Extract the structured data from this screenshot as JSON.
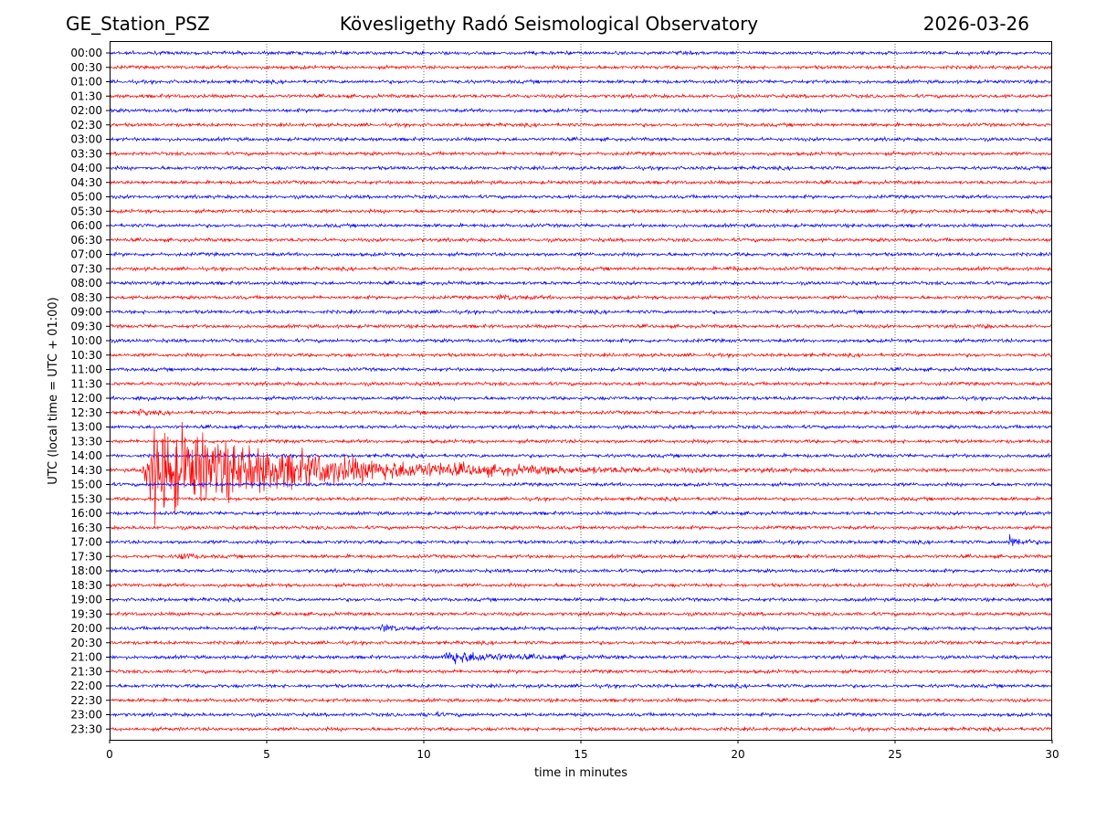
{
  "header": {
    "station": "GE_Station_PSZ",
    "title": "Kövesligethy Radó Seismological Observatory",
    "date": "2026-03-26"
  },
  "chart_data": {
    "type": "line",
    "title": "Kövesligethy Radó Seismological Observatory",
    "xlabel": "time in minutes",
    "ylabel": "UTC (local time = UTC + 01:00)",
    "xlim": [
      0,
      30
    ],
    "x_ticks": [
      0,
      5,
      10,
      15,
      20,
      25,
      30
    ],
    "grid": "vertical dotted at x ticks",
    "trace_colors": [
      "#0000ff",
      "#ff0000"
    ],
    "rows": [
      "00:00",
      "00:30",
      "01:00",
      "01:30",
      "02:00",
      "02:30",
      "03:00",
      "03:30",
      "04:00",
      "04:30",
      "05:00",
      "05:30",
      "06:00",
      "06:30",
      "07:00",
      "07:30",
      "08:00",
      "08:30",
      "09:00",
      "09:30",
      "10:00",
      "10:30",
      "11:00",
      "11:30",
      "12:00",
      "12:30",
      "13:00",
      "13:30",
      "14:00",
      "14:30",
      "15:00",
      "15:30",
      "16:00",
      "16:30",
      "17:00",
      "17:30",
      "18:00",
      "18:30",
      "19:00",
      "19:30",
      "20:00",
      "20:30",
      "21:00",
      "21:30",
      "22:00",
      "22:30",
      "23:00",
      "23:30"
    ],
    "events": [
      {
        "row": "07:30",
        "start_min": 19.7,
        "duration_min": 0.6,
        "amplitude": 1.5
      },
      {
        "row": "08:30",
        "start_min": 12.3,
        "duration_min": 2.2,
        "amplitude": 1.2
      },
      {
        "row": "09:30",
        "start_min": 27.7,
        "duration_min": 0.6,
        "amplitude": 1.5
      },
      {
        "row": "10:00",
        "start_min": 12.9,
        "duration_min": 0.5,
        "amplitude": 1.8
      },
      {
        "row": "12:00",
        "start_min": 0.8,
        "duration_min": 1.0,
        "amplitude": 1.2
      },
      {
        "row": "12:30",
        "start_min": 0.9,
        "duration_min": 1.2,
        "amplitude": 1.5
      },
      {
        "row": "14:30",
        "start_min": 1.0,
        "duration_min": 14.0,
        "amplitude": 28.0
      },
      {
        "row": "17:00",
        "start_min": 28.6,
        "duration_min": 1.2,
        "amplitude": 4.0
      },
      {
        "row": "17:30",
        "start_min": 2.2,
        "duration_min": 0.8,
        "amplitude": 3.5
      },
      {
        "row": "20:00",
        "start_min": 8.6,
        "duration_min": 1.3,
        "amplitude": 2.5
      },
      {
        "row": "21:00",
        "start_min": 10.6,
        "duration_min": 4.8,
        "amplitude": 4.0
      },
      {
        "row": "23:00",
        "start_min": 10.0,
        "duration_min": 1.5,
        "amplitude": 1.0
      }
    ]
  }
}
